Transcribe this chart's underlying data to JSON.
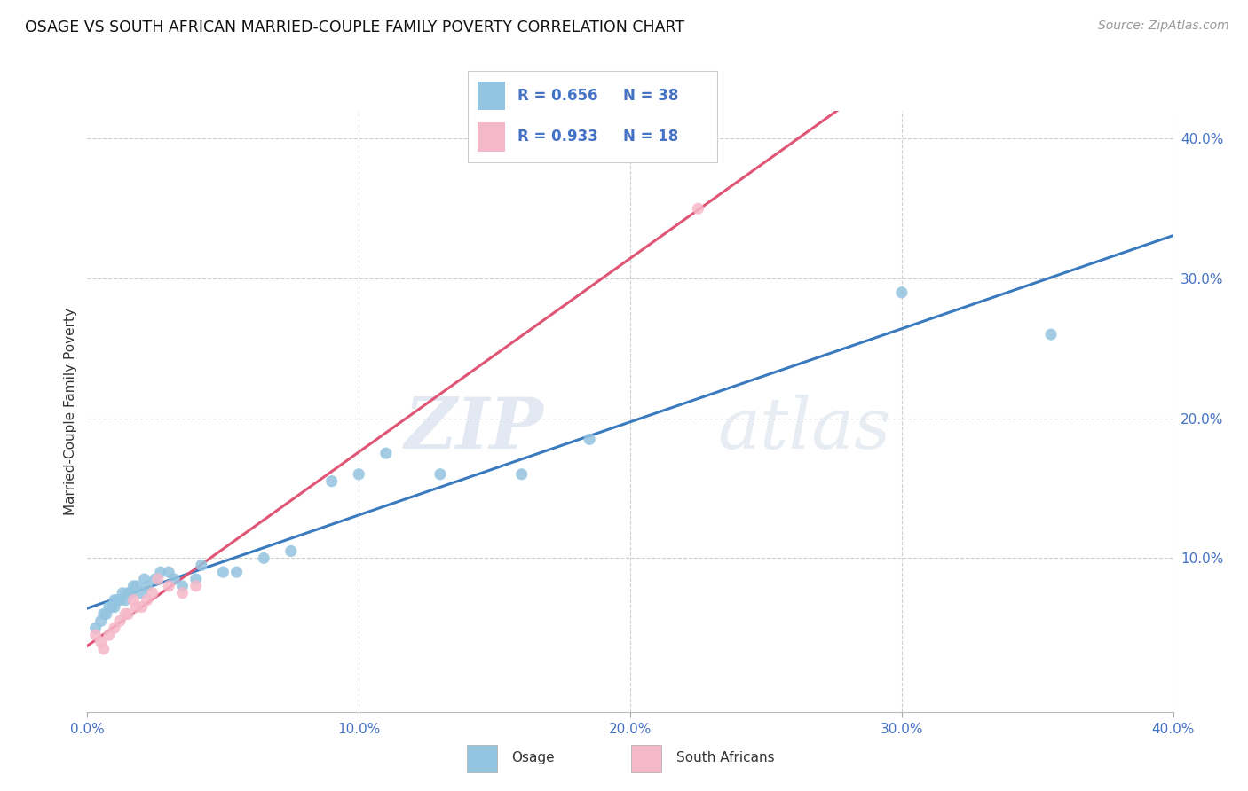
{
  "title": "OSAGE VS SOUTH AFRICAN MARRIED-COUPLE FAMILY POVERTY CORRELATION CHART",
  "source": "Source: ZipAtlas.com",
  "ylabel": "Married-Couple Family Poverty",
  "xlim": [
    0.0,
    0.4
  ],
  "ylim": [
    -0.01,
    0.42
  ],
  "grid_lines": [
    0.1,
    0.2,
    0.3,
    0.4
  ],
  "osage_color": "#93c4e0",
  "sa_color": "#f5b8c8",
  "line_blue": "#3a7abf",
  "line_pink": "#e05575",
  "r_osage": "0.656",
  "n_osage": "38",
  "r_sa": "0.933",
  "n_sa": "18",
  "watermark_zip": "ZIP",
  "watermark_atlas": "atlas",
  "osage_x": [
    0.003,
    0.005,
    0.006,
    0.007,
    0.008,
    0.009,
    0.01,
    0.01,
    0.011,
    0.012,
    0.013,
    0.014,
    0.015,
    0.016,
    0.017,
    0.018,
    0.02,
    0.021,
    0.022,
    0.025,
    0.027,
    0.03,
    0.032,
    0.035,
    0.04,
    0.042,
    0.05,
    0.055,
    0.065,
    0.075,
    0.09,
    0.1,
    0.11,
    0.13,
    0.16,
    0.185,
    0.3,
    0.355
  ],
  "osage_y": [
    0.05,
    0.055,
    0.06,
    0.06,
    0.065,
    0.065,
    0.065,
    0.07,
    0.07,
    0.07,
    0.075,
    0.07,
    0.075,
    0.075,
    0.08,
    0.08,
    0.075,
    0.085,
    0.08,
    0.085,
    0.09,
    0.09,
    0.085,
    0.08,
    0.085,
    0.095,
    0.09,
    0.09,
    0.1,
    0.105,
    0.155,
    0.16,
    0.175,
    0.16,
    0.16,
    0.185,
    0.29,
    0.26
  ],
  "sa_x": [
    0.003,
    0.005,
    0.006,
    0.008,
    0.01,
    0.012,
    0.014,
    0.015,
    0.017,
    0.018,
    0.02,
    0.022,
    0.024,
    0.026,
    0.03,
    0.035,
    0.04,
    0.225
  ],
  "sa_y": [
    0.045,
    0.04,
    0.035,
    0.045,
    0.05,
    0.055,
    0.06,
    0.06,
    0.07,
    0.065,
    0.065,
    0.07,
    0.075,
    0.085,
    0.08,
    0.075,
    0.08,
    0.35
  ]
}
